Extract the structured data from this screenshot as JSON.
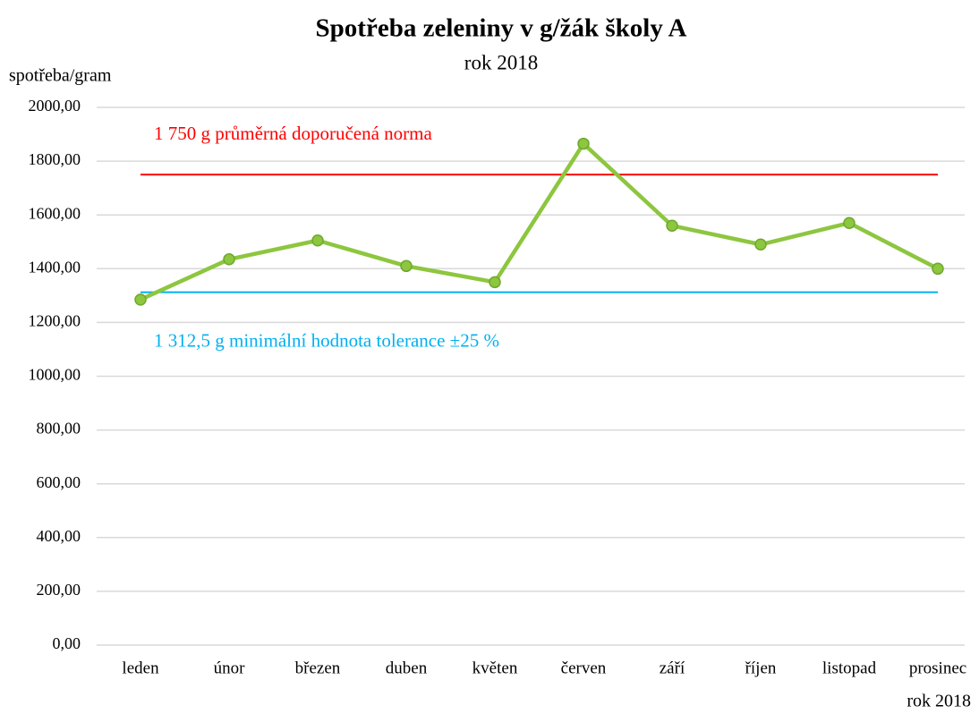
{
  "chart_data": {
    "type": "line",
    "title": "Spotřeba zeleniny v g/žák školy A",
    "subtitle": "rok 2018",
    "y_axis_label": "spotřeba/gram",
    "x_axis_label": "rok 2018",
    "categories": [
      "leden",
      "únor",
      "březen",
      "duben",
      "květen",
      "červen",
      "září",
      "říjen",
      "listopad",
      "prosinec"
    ],
    "series": [
      {
        "name": "spotřeba",
        "color": "#8dc63f",
        "values": [
          1285,
          1435,
          1505,
          1410,
          1350,
          1865,
          1560,
          1490,
          1570,
          1400
        ]
      }
    ],
    "reference_lines": [
      {
        "value": 1750,
        "label": "1 750 g průměrná doporučená norma",
        "color": "#ff0000"
      },
      {
        "value": 1312.5,
        "label": "1 312,5 g minimální hodnota tolerance ±25 %",
        "color": "#00b0f0"
      }
    ],
    "ylim": [
      0,
      2000
    ],
    "yticks": [
      {
        "value": 0,
        "label": "0,00"
      },
      {
        "value": 200,
        "label": "200,00"
      },
      {
        "value": 400,
        "label": "400,00"
      },
      {
        "value": 600,
        "label": "600,00"
      },
      {
        "value": 800,
        "label": "800,00"
      },
      {
        "value": 1000,
        "label": "1000,00"
      },
      {
        "value": 1200,
        "label": "1200,00"
      },
      {
        "value": 1400,
        "label": "1400,00"
      },
      {
        "value": 1600,
        "label": "1600,00"
      },
      {
        "value": 1800,
        "label": "1800,00"
      },
      {
        "value": 2000,
        "label": "2000,00"
      }
    ],
    "grid": true
  }
}
